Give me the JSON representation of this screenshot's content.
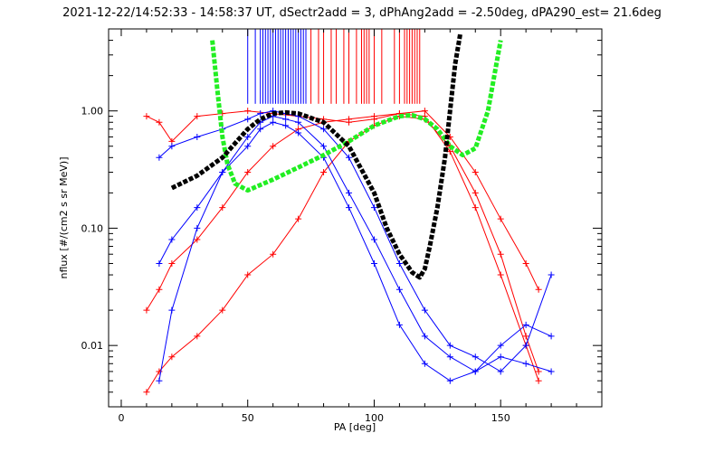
{
  "chart_data": {
    "type": "line",
    "title": "2021-12-22/14:52:33 - 14:58:37 UT, dSectr2add = 3, dPhAng2add = -2.50deg, dPA290_est=  21.6deg",
    "xlabel": "PA [deg]",
    "ylabel": "nflux [#/(cm2 s sr MeV)]",
    "xlim": [
      -5,
      190
    ],
    "ylim": [
      0.003,
      5.0
    ],
    "y_scale": "log",
    "grid": false,
    "x_ticks": [
      0,
      50,
      100,
      150
    ],
    "x_tick_labels": [
      "0",
      "50",
      "100",
      "150"
    ],
    "y_ticks": [
      0.01,
      0.1,
      1.0
    ],
    "y_tick_labels": [
      "0.01",
      "0.10",
      "1.00"
    ],
    "colors": {
      "red": "#ff0000",
      "blue": "#0000ff",
      "green": "#22ee22",
      "black": "#000000"
    },
    "series": [
      {
        "color": "red",
        "style": "line+plus",
        "x": [
          10,
          15,
          20,
          30,
          40,
          50,
          60,
          70,
          80,
          90,
          100,
          110,
          120,
          130,
          140,
          150,
          160,
          165
        ],
        "y": [
          0.9,
          0.8,
          0.55,
          0.9,
          0.95,
          1.0,
          0.95,
          0.9,
          0.85,
          0.8,
          0.85,
          0.95,
          1.0,
          0.6,
          0.3,
          0.12,
          0.05,
          0.03
        ]
      },
      {
        "color": "red",
        "style": "line+plus",
        "x": [
          10,
          15,
          20,
          30,
          40,
          50,
          60,
          70,
          80,
          90,
          100,
          110,
          120,
          130,
          140,
          150,
          160,
          165
        ],
        "y": [
          0.004,
          0.006,
          0.008,
          0.012,
          0.02,
          0.04,
          0.06,
          0.12,
          0.3,
          0.55,
          0.75,
          0.9,
          0.85,
          0.5,
          0.2,
          0.06,
          0.012,
          0.006
        ]
      },
      {
        "color": "red",
        "style": "line+plus",
        "x": [
          10,
          15,
          20,
          30,
          40,
          50,
          60,
          70,
          80,
          90,
          100,
          110,
          120,
          130,
          140,
          150,
          160,
          165
        ],
        "y": [
          0.02,
          0.03,
          0.05,
          0.08,
          0.15,
          0.3,
          0.5,
          0.7,
          0.8,
          0.85,
          0.9,
          0.95,
          0.9,
          0.45,
          0.15,
          0.04,
          0.01,
          0.005
        ]
      },
      {
        "color": "blue",
        "style": "line+plus",
        "x": [
          15,
          20,
          30,
          40,
          50,
          55,
          60,
          65,
          70,
          80,
          90,
          100,
          110,
          120,
          130,
          140,
          150,
          160,
          170
        ],
        "y": [
          0.005,
          0.02,
          0.1,
          0.3,
          0.6,
          0.8,
          0.9,
          0.85,
          0.8,
          0.5,
          0.2,
          0.08,
          0.03,
          0.012,
          0.008,
          0.006,
          0.01,
          0.015,
          0.012
        ]
      },
      {
        "color": "blue",
        "style": "line+plus",
        "x": [
          15,
          20,
          30,
          40,
          50,
          55,
          60,
          65,
          70,
          80,
          90,
          100,
          110,
          120,
          130,
          140,
          150,
          160,
          170
        ],
        "y": [
          0.4,
          0.5,
          0.6,
          0.7,
          0.85,
          0.95,
          1.0,
          0.95,
          0.9,
          0.7,
          0.4,
          0.15,
          0.05,
          0.02,
          0.01,
          0.008,
          0.006,
          0.01,
          0.04
        ]
      },
      {
        "color": "blue",
        "style": "line+plus",
        "x": [
          15,
          20,
          30,
          40,
          50,
          55,
          60,
          65,
          70,
          80,
          90,
          100,
          110,
          120,
          130,
          140,
          150,
          160,
          170
        ],
        "y": [
          0.05,
          0.08,
          0.15,
          0.3,
          0.5,
          0.7,
          0.8,
          0.75,
          0.65,
          0.4,
          0.15,
          0.05,
          0.015,
          0.007,
          0.005,
          0.006,
          0.008,
          0.007,
          0.006
        ]
      },
      {
        "color": "green",
        "style": "thick-dashed",
        "x": [
          36,
          38,
          40,
          42,
          45,
          50,
          60,
          70,
          80,
          90,
          100,
          110,
          115,
          120,
          125,
          130,
          135,
          140,
          145,
          150
        ],
        "y": [
          4.0,
          1.5,
          0.6,
          0.35,
          0.24,
          0.21,
          0.26,
          0.33,
          0.42,
          0.55,
          0.75,
          0.9,
          0.92,
          0.85,
          0.7,
          0.5,
          0.42,
          0.48,
          1.0,
          4.0
        ]
      },
      {
        "color": "black",
        "style": "thick-dashed",
        "x": [
          20,
          30,
          40,
          50,
          55,
          60,
          65,
          70,
          80,
          90,
          100,
          105,
          110,
          115,
          118,
          120,
          122,
          125,
          128,
          130,
          132,
          134
        ],
        "y": [
          0.22,
          0.28,
          0.4,
          0.7,
          0.85,
          0.95,
          0.97,
          0.95,
          0.8,
          0.5,
          0.2,
          0.1,
          0.06,
          0.042,
          0.038,
          0.045,
          0.07,
          0.15,
          0.4,
          1.0,
          2.5,
          4.5
        ]
      }
    ],
    "vertical_markers": [
      {
        "color": "blue",
        "x": [
          50,
          53,
          55,
          56,
          57,
          58,
          59,
          60,
          61,
          62,
          63,
          64,
          65,
          66,
          67,
          68,
          69,
          70,
          71,
          72,
          73
        ]
      },
      {
        "color": "red",
        "x": [
          75,
          78,
          80,
          83,
          85,
          88,
          90,
          93,
          95,
          96,
          97,
          98,
          100,
          103,
          108,
          110,
          112,
          113,
          114,
          115,
          116,
          117,
          118
        ]
      }
    ]
  }
}
